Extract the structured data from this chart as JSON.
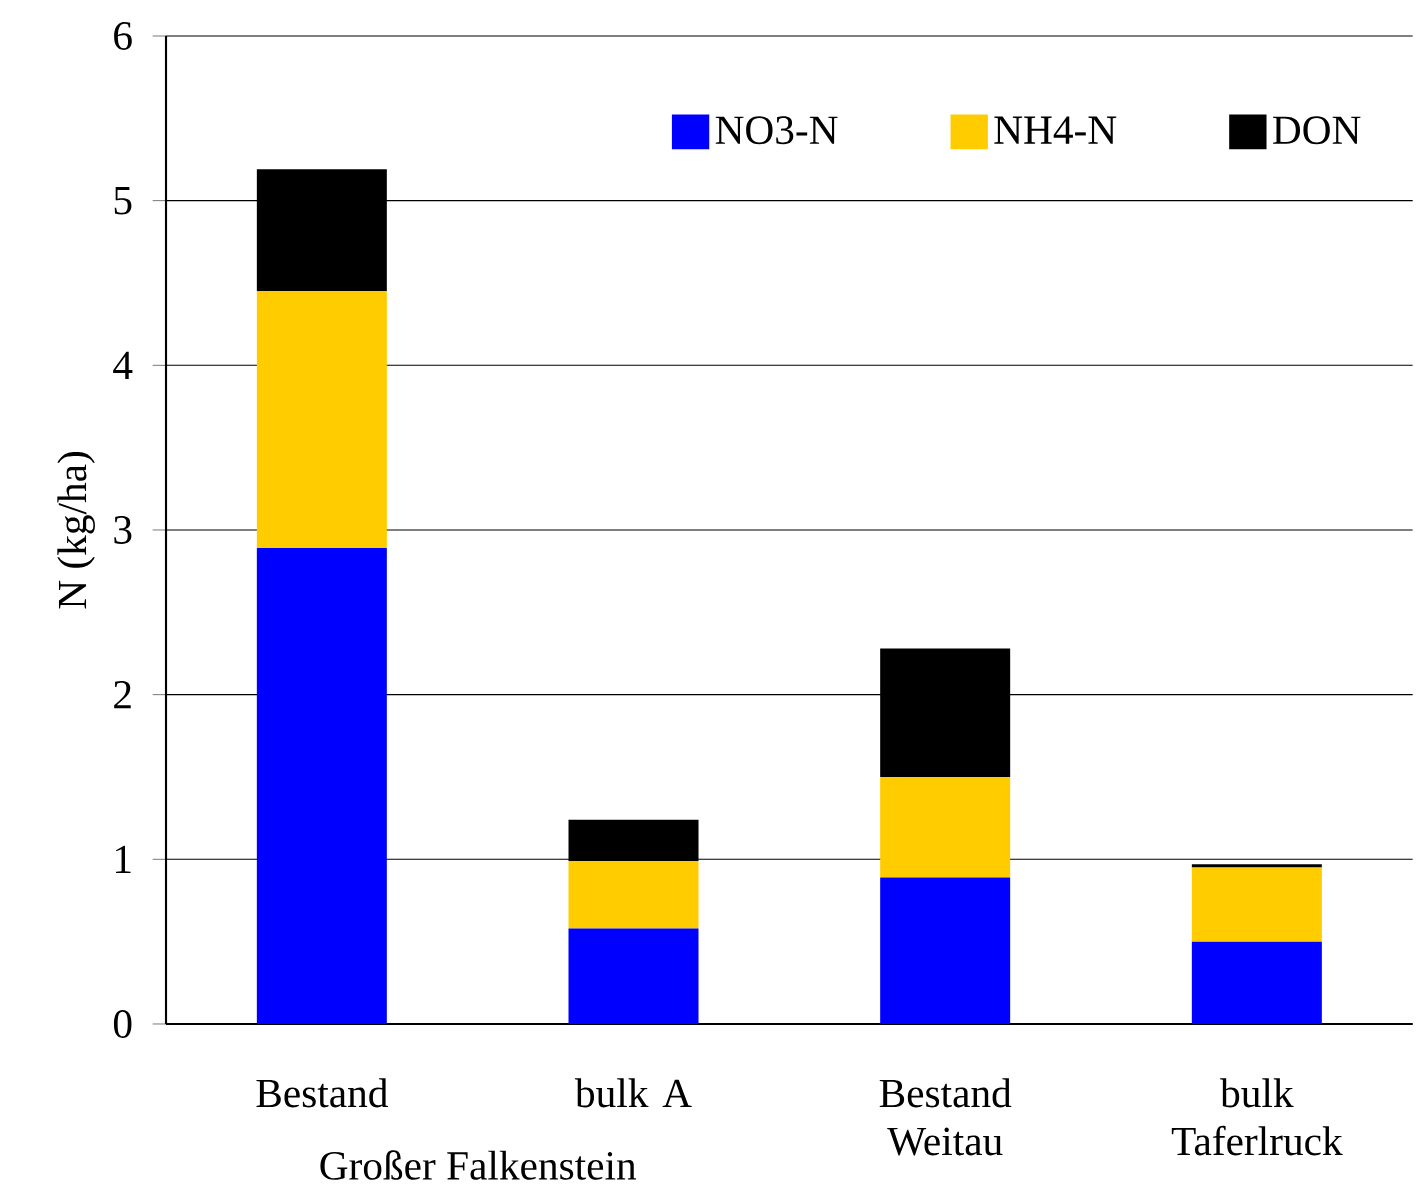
{
  "chart_data": {
    "type": "bar",
    "stacked": true,
    "ylabel": "N  (kg/ha)",
    "categories": [
      "Bestand",
      "bulk A",
      "Bestand Weitau",
      "bulk Taferlruck"
    ],
    "series": [
      {
        "name": "NO3-N",
        "color": "#0000ff",
        "values": [
          2.89,
          0.58,
          0.89,
          0.5
        ]
      },
      {
        "name": "NH4-N",
        "color": "#ffcc00",
        "values": [
          1.56,
          0.41,
          0.61,
          0.45
        ]
      },
      {
        "name": "DON",
        "color": "#000000",
        "values": [
          0.74,
          0.25,
          0.78,
          0.02
        ]
      }
    ],
    "annotations": [
      "Großer Falkenstein"
    ],
    "ylim": [
      0,
      6
    ],
    "yticks": [
      0,
      1,
      2,
      3,
      4,
      5,
      6
    ],
    "grid": "y",
    "legend": "top right"
  }
}
